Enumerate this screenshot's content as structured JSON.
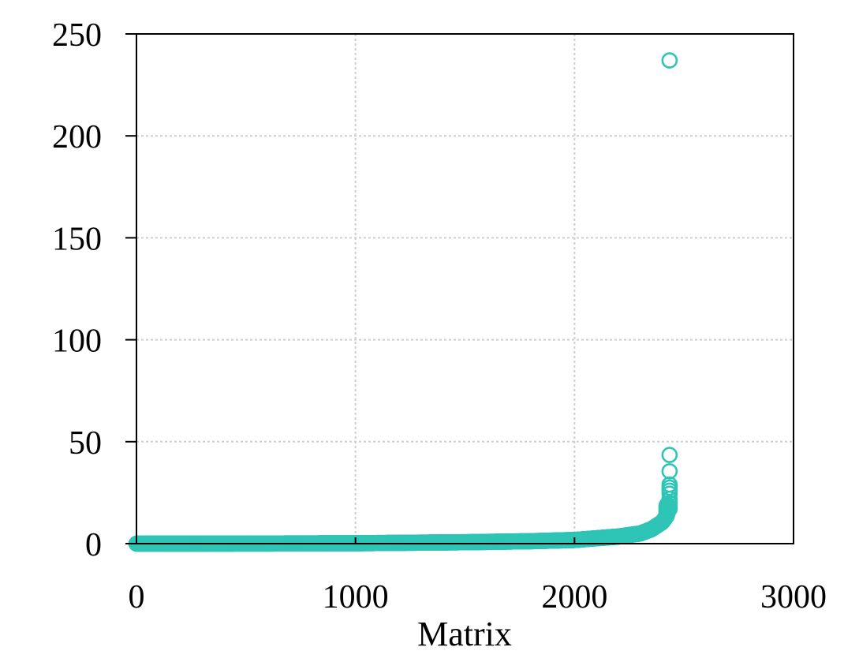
{
  "chart_data": {
    "type": "scatter",
    "title": "",
    "xlabel": "Matrix",
    "ylabel": "",
    "xlim": [
      0,
      3000
    ],
    "ylim": [
      0,
      250
    ],
    "xticks": [
      0,
      1000,
      2000,
      3000
    ],
    "yticks": [
      0,
      50,
      100,
      150,
      200,
      250
    ],
    "grid": true,
    "marker": "hollow-circle",
    "color": "#2ec4b6",
    "point_count": 2434,
    "curve": {
      "description_points": [
        [
          0,
          0.0
        ],
        [
          500,
          0.05
        ],
        [
          1000,
          0.2
        ],
        [
          1200,
          0.4
        ],
        [
          1500,
          0.7
        ],
        [
          1800,
          1.2
        ],
        [
          2000,
          1.8
        ],
        [
          2200,
          3.5
        ],
        [
          2300,
          5.0
        ],
        [
          2350,
          7.0
        ],
        [
          2400,
          10.5
        ],
        [
          2420,
          13.5
        ],
        [
          2430,
          17.0
        ]
      ]
    },
    "outliers": [
      {
        "x": 2434,
        "y": 20.0
      },
      {
        "x": 2434,
        "y": 22.0
      },
      {
        "x": 2434,
        "y": 24.5
      },
      {
        "x": 2434,
        "y": 26.0
      },
      {
        "x": 2434,
        "y": 27.5
      },
      {
        "x": 2434,
        "y": 29.0
      },
      {
        "x": 2434,
        "y": 35.5
      },
      {
        "x": 2434,
        "y": 43.5
      },
      {
        "x": 2434,
        "y": 237.0
      }
    ]
  }
}
